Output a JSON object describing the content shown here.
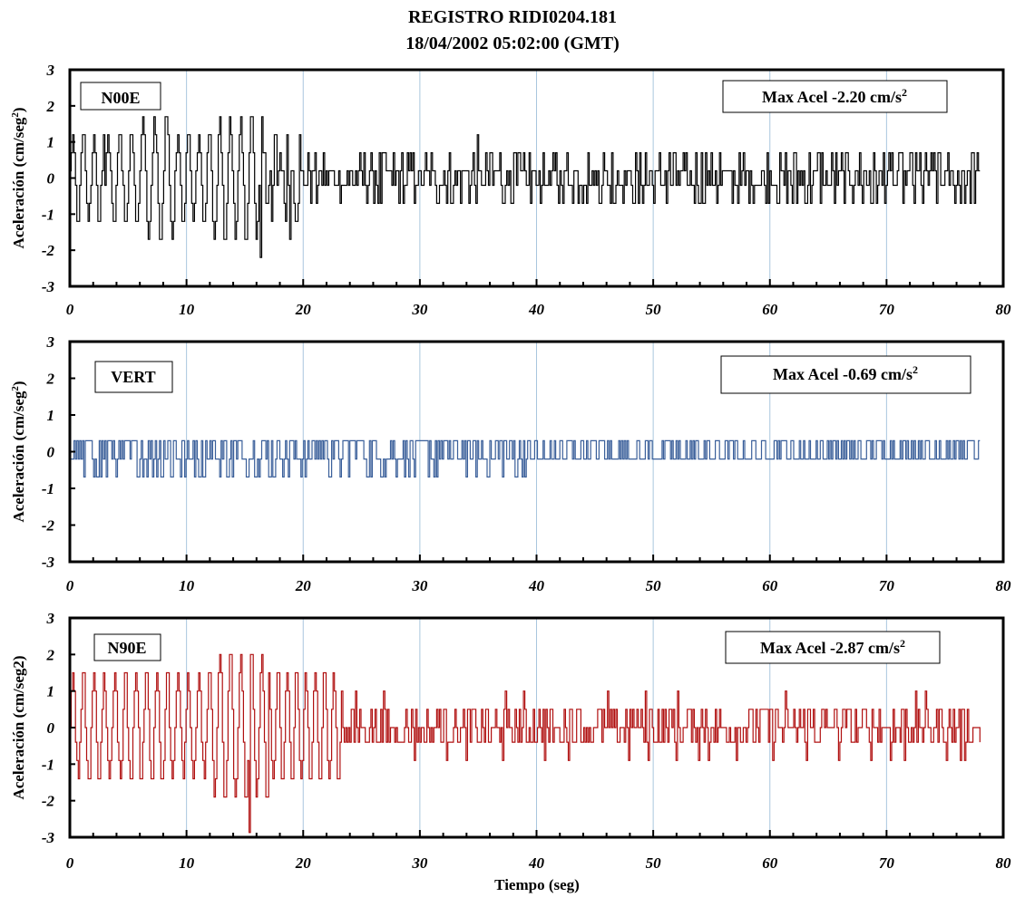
{
  "header": {
    "title_line1": "REGISTRO  RIDI0204.181",
    "title_line2": "18/04/2002 05:02:00 (GMT)"
  },
  "chart_data": [
    {
      "type": "line",
      "component": "N00E",
      "max_label": "Max Acel -2.20 cm/s",
      "max_label_sup": "2",
      "ylabel": "Aceleración  (cm/seg",
      "ylabel_sup": "2",
      "ylabel_end": ")",
      "xlabel": "",
      "xlim": [
        0,
        80
      ],
      "ylim": [
        -3,
        3
      ],
      "xticks": [
        0,
        10,
        20,
        30,
        40,
        50,
        60,
        70,
        80
      ],
      "yticks": [
        3,
        2,
        1,
        0,
        -1,
        -2,
        -3
      ],
      "color": "#000000",
      "duration": 78,
      "levels": [
        -2.2,
        -1.7,
        -1.2,
        -0.7,
        -0.2,
        0.2,
        0.7,
        1.2,
        1.7
      ],
      "peak": -2.2,
      "peak_t": 16.3,
      "segments": [
        {
          "t0": 0,
          "t1": 3,
          "amp": 1.2,
          "period": 0.9
        },
        {
          "t0": 3,
          "t1": 6,
          "amp": 1.2,
          "period": 1.0
        },
        {
          "t0": 6,
          "t1": 9,
          "amp": 1.7,
          "period": 1.0
        },
        {
          "t0": 9,
          "t1": 12,
          "amp": 1.2,
          "period": 0.9
        },
        {
          "t0": 12,
          "t1": 16.6,
          "amp": 1.7,
          "period": 0.9
        },
        {
          "t0": 16.6,
          "t1": 20,
          "amp": 1.2,
          "period": 0.5,
          "noise": true
        },
        {
          "t0": 20,
          "t1": 78,
          "amp": 0.7,
          "period": 0.4,
          "noise": true
        }
      ]
    },
    {
      "type": "line",
      "component": "VERT",
      "max_label": "Max  Acel -0.69 cm/s",
      "max_label_sup": "2",
      "ylabel": "Aceleración  (cm/seg",
      "ylabel_sup": "2",
      "ylabel_end": ")",
      "xlabel": "",
      "xlim": [
        0,
        80
      ],
      "ylim": [
        -3,
        3
      ],
      "xticks": [
        0,
        10,
        20,
        30,
        40,
        50,
        60,
        70,
        80
      ],
      "yticks": [
        3,
        2,
        1,
        0,
        -1,
        -2,
        -3
      ],
      "color": "#3a5f9a",
      "duration": 78,
      "levels": [
        -0.69,
        -0.2,
        0.3
      ],
      "peak": -0.69,
      "peak_t": 1.2,
      "segments": [
        {
          "t0": 0,
          "t1": 3,
          "amp": 0.69,
          "period": 0.3,
          "noise": true
        },
        {
          "t0": 3,
          "t1": 40,
          "amp": 0.69,
          "period": 0.4,
          "noise": true
        },
        {
          "t0": 40,
          "t1": 78,
          "amp": 0.3,
          "period": 0.3,
          "noise": true
        }
      ]
    },
    {
      "type": "line",
      "component": "N90E",
      "max_label": "Max Acel -2.87 cm/s",
      "max_label_sup": "2",
      "ylabel": "Aceleración  (cm/seg2)",
      "ylabel_sup": "",
      "ylabel_end": "",
      "xlabel": "Tiempo  (seg)",
      "xlim": [
        0,
        80
      ],
      "ylim": [
        -3,
        3
      ],
      "xticks": [
        0,
        10,
        20,
        30,
        40,
        50,
        60,
        70,
        80
      ],
      "yticks": [
        3,
        2,
        1,
        0,
        -1,
        -2,
        -3
      ],
      "color": "#b01010",
      "duration": 78,
      "levels": [
        -2.87,
        -2.4,
        -1.9,
        -1.4,
        -0.9,
        -0.4,
        0.0,
        0.5,
        1.0,
        1.5,
        2.0
      ],
      "peak": -2.87,
      "peak_t": 15.4,
      "segments": [
        {
          "t0": 0,
          "t1": 6,
          "amp": 1.4,
          "period": 0.9
        },
        {
          "t0": 6,
          "t1": 9,
          "amp": 1.5,
          "period": 0.9
        },
        {
          "t0": 9,
          "t1": 12,
          "amp": 1.4,
          "period": 0.9
        },
        {
          "t0": 12,
          "t1": 17,
          "amp": 2.0,
          "period": 0.9
        },
        {
          "t0": 17,
          "t1": 23.3,
          "amp": 1.5,
          "period": 0.8
        },
        {
          "t0": 23.3,
          "t1": 78,
          "amp": 0.6,
          "period": 0.4,
          "noise": true
        }
      ]
    }
  ]
}
